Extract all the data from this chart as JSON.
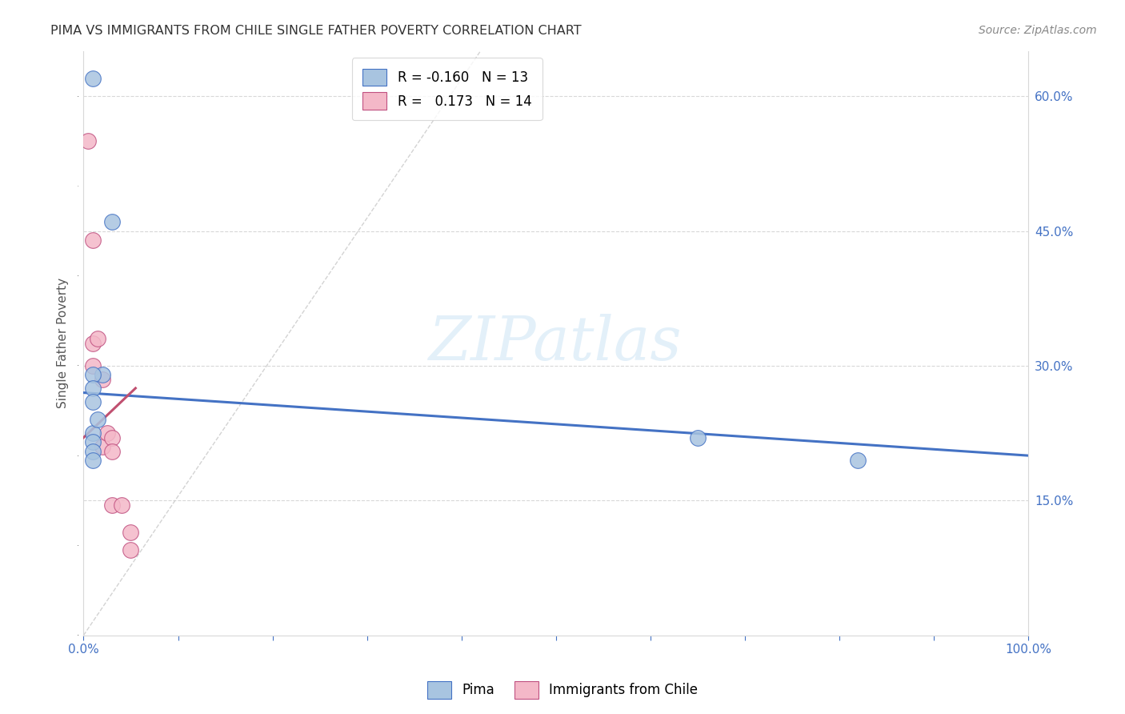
{
  "title": "PIMA VS IMMIGRANTS FROM CHILE SINGLE FATHER POVERTY CORRELATION CHART",
  "source": "Source: ZipAtlas.com",
  "ylabel": "Single Father Poverty",
  "legend_label1": "Pima",
  "legend_label2": "Immigrants from Chile",
  "R1": "-0.160",
  "N1": "13",
  "R2": "0.173",
  "N2": "14",
  "xlim": [
    0.0,
    1.0
  ],
  "ylim": [
    0.0,
    0.65
  ],
  "x_ticks": [
    0.0,
    0.1,
    0.2,
    0.3,
    0.4,
    0.5,
    0.6,
    0.7,
    0.8,
    0.9,
    1.0
  ],
  "x_tick_labels": [
    "0.0%",
    "",
    "",
    "",
    "",
    "",
    "",
    "",
    "",
    "",
    "100.0%"
  ],
  "y_ticks": [
    0.15,
    0.3,
    0.45,
    0.6
  ],
  "y_tick_labels": [
    "15.0%",
    "30.0%",
    "45.0%",
    "60.0%"
  ],
  "color_pima_fill": "#a8c4e0",
  "color_pima_edge": "#4472C4",
  "color_chile_fill": "#f4b8c8",
  "color_chile_edge": "#C05080",
  "color_line_pima": "#4472C4",
  "color_line_chile": "#C05070",
  "color_diag": "#c8c8c8",
  "watermark": "ZIPatlas",
  "pima_x": [
    0.01,
    0.03,
    0.02,
    0.01,
    0.01,
    0.01,
    0.01,
    0.01,
    0.01,
    0.01,
    0.015,
    0.65,
    0.82
  ],
  "pima_y": [
    0.62,
    0.46,
    0.29,
    0.29,
    0.275,
    0.26,
    0.225,
    0.215,
    0.205,
    0.195,
    0.24,
    0.22,
    0.195
  ],
  "chile_x": [
    0.005,
    0.01,
    0.01,
    0.01,
    0.015,
    0.02,
    0.02,
    0.025,
    0.03,
    0.03,
    0.03,
    0.04,
    0.05,
    0.05
  ],
  "chile_y": [
    0.55,
    0.44,
    0.325,
    0.3,
    0.33,
    0.285,
    0.21,
    0.225,
    0.22,
    0.205,
    0.145,
    0.145,
    0.115,
    0.095
  ],
  "pima_line_x0": 0.0,
  "pima_line_y0": 0.27,
  "pima_line_x1": 1.0,
  "pima_line_y1": 0.2,
  "chile_line_x0": 0.0,
  "chile_line_y0": 0.22,
  "chile_line_x1": 0.055,
  "chile_line_y1": 0.275
}
